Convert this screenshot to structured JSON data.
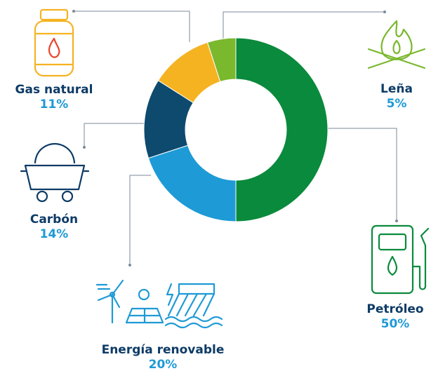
{
  "chart_data": {
    "type": "pie",
    "categories": [
      "Petróleo",
      "Energía renovable",
      "Carbón",
      "Gas natural",
      "Leña"
    ],
    "values": [
      50,
      20,
      14,
      11,
      5
    ],
    "value_labels": [
      "50%",
      "20%",
      "14%",
      "11%",
      "5%"
    ],
    "colors": [
      "#0a8a3c",
      "#1e9ad6",
      "#0d4a6e",
      "#f5b321",
      "#7ab82d"
    ],
    "donut": true
  }
}
